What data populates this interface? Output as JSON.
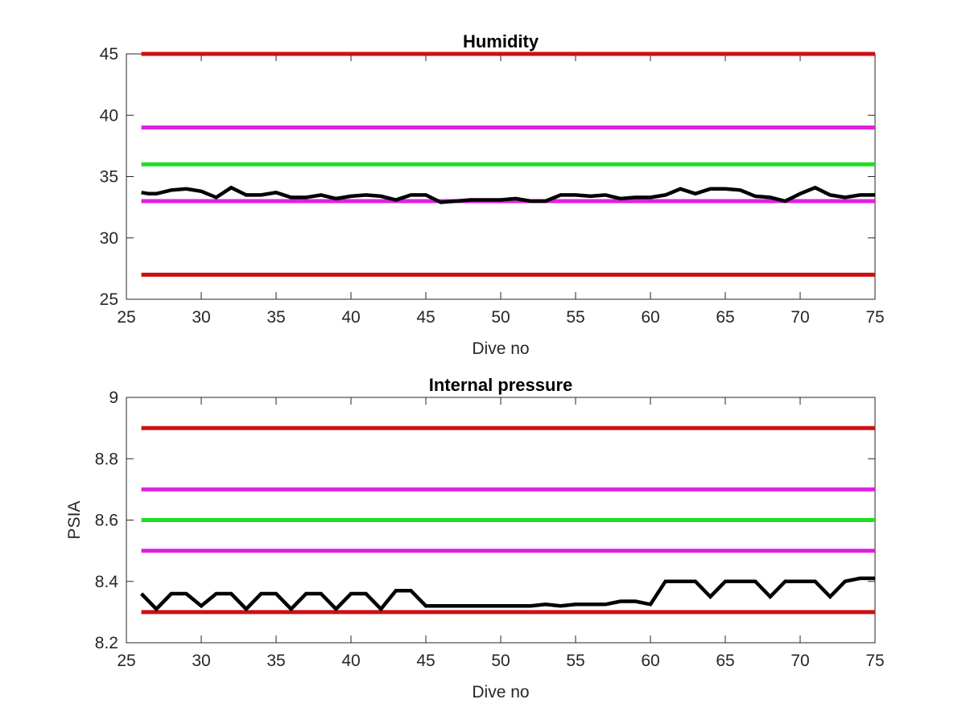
{
  "chart_data": [
    {
      "type": "line",
      "title": "Humidity",
      "xlabel": "Dive no",
      "ylabel": "",
      "xlim": [
        25,
        75
      ],
      "ylim": [
        25,
        45
      ],
      "xticks": [
        "25",
        "30",
        "35",
        "40",
        "45",
        "50",
        "55",
        "60",
        "65",
        "70",
        "75"
      ],
      "yticks": [
        "25",
        "30",
        "35",
        "40",
        "45"
      ],
      "grid": false,
      "colors": {
        "red": "#cc1111",
        "magenta": "#e020e0",
        "green": "#22dd22",
        "data": "#000000"
      },
      "reference_lines": [
        {
          "y": 45,
          "color": "red"
        },
        {
          "y": 39,
          "color": "magenta"
        },
        {
          "y": 36,
          "color": "green"
        },
        {
          "y": 33,
          "color": "magenta"
        },
        {
          "y": 27,
          "color": "red"
        }
      ],
      "series": [
        {
          "x": [
            26,
            26.5,
            27,
            28,
            29,
            30,
            31,
            32,
            33,
            34,
            35,
            36,
            37,
            38,
            39,
            40,
            41,
            42,
            43,
            44,
            45,
            46,
            47,
            48,
            49,
            50,
            51,
            52,
            53,
            54,
            55,
            56,
            57,
            58,
            59,
            60,
            61,
            62,
            63,
            64,
            65,
            66,
            67,
            68,
            69,
            70,
            71,
            72,
            73,
            74,
            75
          ],
          "values": [
            33.7,
            33.6,
            33.6,
            33.9,
            34.0,
            33.8,
            33.3,
            34.1,
            33.5,
            33.5,
            33.7,
            33.3,
            33.3,
            33.5,
            33.2,
            33.4,
            33.5,
            33.4,
            33.1,
            33.5,
            33.5,
            32.9,
            33.0,
            33.1,
            33.1,
            33.1,
            33.2,
            33.0,
            33.0,
            33.5,
            33.5,
            33.4,
            33.5,
            33.2,
            33.3,
            33.3,
            33.5,
            34.0,
            33.6,
            34.0,
            34.0,
            33.9,
            33.4,
            33.3,
            33.0,
            33.6,
            34.1,
            33.5,
            33.3,
            33.5,
            33.5
          ]
        }
      ]
    },
    {
      "type": "line",
      "title": "Internal pressure",
      "xlabel": "Dive no",
      "ylabel": "PSIA",
      "xlim": [
        25,
        75
      ],
      "ylim": [
        8.2,
        9
      ],
      "xticks": [
        "25",
        "30",
        "35",
        "40",
        "45",
        "50",
        "55",
        "60",
        "65",
        "70",
        "75"
      ],
      "yticks": [
        "8.2",
        "8.4",
        "8.6",
        "8.8",
        "9"
      ],
      "grid": false,
      "colors": {
        "red": "#cc1111",
        "magenta": "#e020e0",
        "green": "#22dd22",
        "data": "#000000"
      },
      "reference_lines": [
        {
          "y": 8.9,
          "color": "red"
        },
        {
          "y": 8.7,
          "color": "magenta"
        },
        {
          "y": 8.6,
          "color": "green"
        },
        {
          "y": 8.5,
          "color": "magenta"
        },
        {
          "y": 8.3,
          "color": "red"
        }
      ],
      "series": [
        {
          "x": [
            26,
            27,
            28,
            29,
            30,
            31,
            32,
            33,
            34,
            35,
            36,
            37,
            38,
            39,
            40,
            41,
            42,
            43,
            44,
            45,
            46,
            47,
            48,
            49,
            50,
            51,
            52,
            53,
            54,
            55,
            56,
            57,
            58,
            59,
            60,
            61,
            62,
            63,
            64,
            65,
            66,
            67,
            68,
            69,
            70,
            71,
            72,
            73,
            74,
            75
          ],
          "values": [
            8.36,
            8.31,
            8.36,
            8.36,
            8.32,
            8.36,
            8.36,
            8.31,
            8.36,
            8.36,
            8.31,
            8.36,
            8.36,
            8.31,
            8.36,
            8.36,
            8.31,
            8.37,
            8.37,
            8.32,
            8.32,
            8.32,
            8.32,
            8.32,
            8.32,
            8.32,
            8.32,
            8.325,
            8.32,
            8.325,
            8.325,
            8.325,
            8.335,
            8.335,
            8.325,
            8.4,
            8.4,
            8.4,
            8.35,
            8.4,
            8.4,
            8.4,
            8.35,
            8.4,
            8.4,
            8.4,
            8.35,
            8.4,
            8.41,
            8.41
          ]
        }
      ]
    }
  ]
}
